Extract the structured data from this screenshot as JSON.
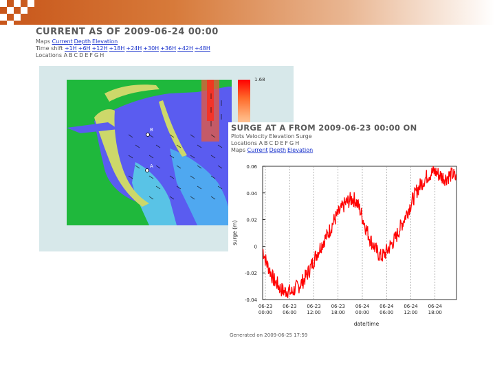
{
  "colors": {
    "accent_orange": "#c8561a",
    "link_blue": "#1a33cc",
    "surge_red": "#ff0000"
  },
  "current_panel": {
    "title": "CURRENT AS OF 2009-06-24 00:00",
    "maps_label": "Maps",
    "maps_links": [
      "Current",
      "Depth",
      "Elevation"
    ],
    "timeshift_label": "Time shift",
    "timeshift_links": [
      "+1H",
      "+6H",
      "+12H",
      "+18H",
      "+24H",
      "+30H",
      "+36H",
      "+42H",
      "+48H"
    ],
    "locations_label": "Locations",
    "locations": [
      "A",
      "B",
      "C",
      "D",
      "E",
      "F",
      "G",
      "H"
    ],
    "colorbar_max": "1.68",
    "map_point_labels": [
      "B",
      "A"
    ]
  },
  "surge_panel": {
    "title": "SURGE AT A FROM 2009-06-23 00:00 ON",
    "plots_label": "Plots",
    "plots_links": [
      "Velocity",
      "Elevation",
      "Surge"
    ],
    "locations_label": "Locations",
    "locations": [
      "A",
      "B",
      "C",
      "D",
      "E",
      "F",
      "G",
      "H"
    ],
    "maps_label": "Maps",
    "maps_links": [
      "Current",
      "Depth",
      "Elevation"
    ],
    "footer": "Generated on 2009-06-25 17:59"
  },
  "chart_data": {
    "type": "line",
    "title": "",
    "xlabel": "date/time",
    "ylabel": "surge (m)",
    "ylim": [
      -0.04,
      0.06
    ],
    "yticks": [
      "0.06",
      "0.04",
      "0.02",
      "0",
      "-0.02",
      "-0.04"
    ],
    "xticks": [
      "06-23 00:00",
      "06-23 06:00",
      "06-23 12:00",
      "06-23 18:00",
      "06-24 00:00",
      "06-24 06:00",
      "06-24 12:00",
      "06-24 18:00"
    ],
    "series": [
      {
        "color": "#ff0000",
        "x": [
          0,
          1,
          2,
          3,
          4,
          5,
          6,
          7,
          8,
          9,
          10,
          11,
          12,
          13,
          14,
          15,
          16,
          17,
          18,
          19,
          20,
          21,
          22,
          23,
          24,
          25,
          26,
          27,
          28,
          29,
          30,
          31,
          32,
          33,
          34,
          35,
          36,
          37,
          38,
          39,
          40,
          41,
          42,
          43,
          44,
          45,
          46,
          47,
          48,
          49,
          50,
          51,
          52,
          53,
          54
        ],
        "values": [
          -0.002,
          -0.012,
          -0.018,
          -0.025,
          -0.028,
          -0.032,
          -0.034,
          -0.033,
          -0.035,
          -0.032,
          -0.03,
          -0.027,
          -0.023,
          -0.018,
          -0.012,
          -0.006,
          -0.001,
          0.004,
          0.008,
          0.014,
          0.02,
          0.024,
          0.028,
          0.032,
          0.034,
          0.036,
          0.034,
          0.028,
          0.02,
          0.012,
          0.005,
          0.0,
          -0.005,
          -0.008,
          -0.006,
          -0.002,
          0.002,
          0.006,
          0.012,
          0.018,
          0.024,
          0.03,
          0.036,
          0.042,
          0.046,
          0.05,
          0.053,
          0.055,
          0.056,
          0.054,
          0.052,
          0.051,
          0.053,
          0.054,
          0.05
        ]
      }
    ]
  }
}
